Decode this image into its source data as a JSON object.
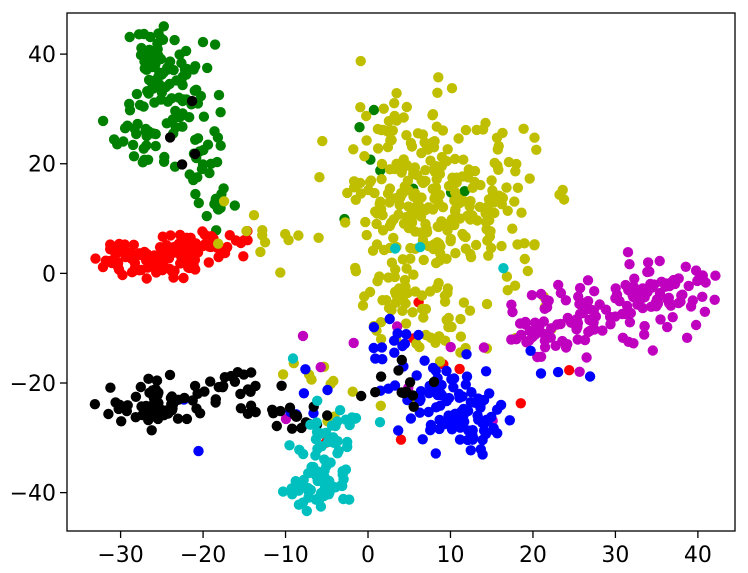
{
  "chart_data": {
    "type": "scatter",
    "title": "",
    "xlabel": "",
    "ylabel": "",
    "xlim": [
      -36.5,
      44.5
    ],
    "ylim": [
      -47,
      47.5
    ],
    "xticks": [
      -30,
      -20,
      -10,
      0,
      10,
      20,
      30,
      40
    ],
    "yticks": [
      -40,
      -20,
      0,
      20,
      40
    ],
    "xtick_labels": [
      "−30",
      "−20",
      "−10",
      "0",
      "10",
      "20",
      "30",
      "40"
    ],
    "ytick_labels": [
      "−40",
      "−20",
      "0",
      "20",
      "40"
    ],
    "grid": false,
    "legend": false,
    "series": [
      {
        "color": "#008000",
        "clusters": [
          {
            "cx": -26,
            "cy": 38,
            "sx": 1.6,
            "sy": 3.5,
            "n": 40
          },
          {
            "cx": -23,
            "cy": 33,
            "sx": 2.2,
            "sy": 4.5,
            "n": 60
          },
          {
            "cx": -27,
            "cy": 25,
            "sx": 2.0,
            "sy": 3.0,
            "n": 30
          },
          {
            "cx": -19.5,
            "cy": 20,
            "sx": 1.2,
            "sy": 4.0,
            "n": 18
          },
          {
            "cx": -18,
            "cy": 12,
            "sx": 2.0,
            "sy": 2.0,
            "n": 10
          },
          {
            "cx": 3,
            "cy": 22,
            "sx": 6,
            "sy": 6,
            "n": 8
          }
        ]
      },
      {
        "color": "#ff0000",
        "clusters": [
          {
            "cx": -27,
            "cy": 3,
            "sx": 3.0,
            "sy": 2.0,
            "n": 70
          },
          {
            "cx": -21,
            "cy": 4,
            "sx": 2.5,
            "sy": 2.0,
            "n": 35
          },
          {
            "cx": -16,
            "cy": 6,
            "sx": 1.5,
            "sy": 1.0,
            "n": 8
          },
          {
            "cx": 5,
            "cy": -20,
            "sx": 8,
            "sy": 8,
            "n": 8
          }
        ]
      },
      {
        "color": "#bfbf00",
        "clusters": [
          {
            "cx": 4,
            "cy": 17,
            "sx": 4.0,
            "sy": 8.0,
            "n": 140
          },
          {
            "cx": 12,
            "cy": 13,
            "sx": 4.5,
            "sy": 7.0,
            "n": 120
          },
          {
            "cx": 4,
            "cy": -2,
            "sx": 3.0,
            "sy": 6.0,
            "n": 45
          },
          {
            "cx": 8,
            "cy": -12,
            "sx": 3.0,
            "sy": 4.0,
            "n": 25
          },
          {
            "cx": -13,
            "cy": 6,
            "sx": 3.0,
            "sy": 2.5,
            "n": 12
          },
          {
            "cx": -5,
            "cy": -22,
            "sx": 5.0,
            "sy": 5.0,
            "n": 12
          },
          {
            "cx": 17,
            "cy": -3,
            "sx": 2.5,
            "sy": 6.0,
            "n": 18
          }
        ]
      },
      {
        "color": "#bf00bf",
        "clusters": [
          {
            "cx": 35,
            "cy": -4,
            "sx": 3.5,
            "sy": 3.0,
            "n": 75
          },
          {
            "cx": 27,
            "cy": -8,
            "sx": 4.0,
            "sy": 3.0,
            "n": 60
          },
          {
            "cx": 20,
            "cy": -10,
            "sx": 2.5,
            "sy": 2.0,
            "n": 25
          },
          {
            "cx": 2,
            "cy": -20,
            "sx": 12.0,
            "sy": 8.0,
            "n": 8
          }
        ]
      },
      {
        "color": "#0000ff",
        "clusters": [
          {
            "cx": 13,
            "cy": -27,
            "sx": 2.5,
            "sy": 3.0,
            "n": 55
          },
          {
            "cx": 8,
            "cy": -21,
            "sx": 3.0,
            "sy": 3.5,
            "n": 45
          },
          {
            "cx": 4,
            "cy": -13,
            "sx": 2.0,
            "sy": 3.0,
            "n": 12
          },
          {
            "cx": -10,
            "cy": -22,
            "sx": 8.0,
            "sy": 6.0,
            "n": 10
          },
          {
            "cx": 22,
            "cy": -17,
            "sx": 4.0,
            "sy": 2.0,
            "n": 4
          }
        ]
      },
      {
        "color": "#000000",
        "clusters": [
          {
            "cx": -25,
            "cy": -24,
            "sx": 3.0,
            "sy": 2.0,
            "n": 60
          },
          {
            "cx": -16,
            "cy": -22,
            "sx": 3.0,
            "sy": 2.5,
            "n": 25
          },
          {
            "cx": -8,
            "cy": -27,
            "sx": 2.0,
            "sy": 2.0,
            "n": 12
          },
          {
            "cx": 4,
            "cy": -21,
            "sx": 3.0,
            "sy": 4.0,
            "n": 12
          },
          {
            "cx": -21,
            "cy": 23,
            "sx": 2.0,
            "sy": 4.0,
            "n": 4
          }
        ]
      },
      {
        "color": "#00bfbf",
        "clusters": [
          {
            "cx": -6,
            "cy": -40,
            "sx": 1.8,
            "sy": 1.2,
            "n": 35
          },
          {
            "cx": -5,
            "cy": -34,
            "sx": 1.5,
            "sy": 3.0,
            "n": 35
          },
          {
            "cx": -4,
            "cy": -27,
            "sx": 2.0,
            "sy": 2.0,
            "n": 15
          },
          {
            "cx": 6,
            "cy": -8,
            "sx": 10.0,
            "sy": 10.0,
            "n": 4
          }
        ]
      }
    ]
  }
}
